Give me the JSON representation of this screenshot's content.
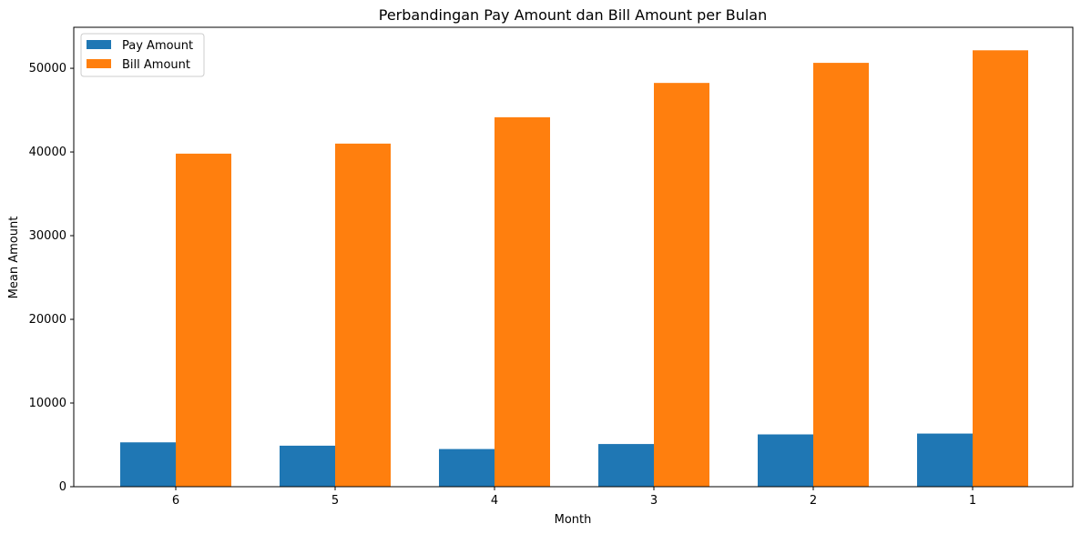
{
  "chart_data": {
    "type": "bar",
    "title": "Perbandingan Pay Amount dan Bill Amount per Bulan",
    "xlabel": "Month",
    "ylabel": "Mean Amount",
    "categories": [
      "6",
      "5",
      "4",
      "3",
      "2",
      "1"
    ],
    "series": [
      {
        "name": "Pay Amount",
        "color": "#1f77b4",
        "values": [
          5300,
          4900,
          4500,
          5100,
          6250,
          6350
        ]
      },
      {
        "name": "Bill Amount",
        "color": "#ff7f0e",
        "values": [
          39800,
          41000,
          44150,
          48250,
          50650,
          52150
        ]
      }
    ],
    "ylim": [
      0,
      54900
    ],
    "yticks": [
      0,
      10000,
      20000,
      30000,
      40000,
      50000
    ],
    "grid": false,
    "legend_position": "top-left"
  }
}
